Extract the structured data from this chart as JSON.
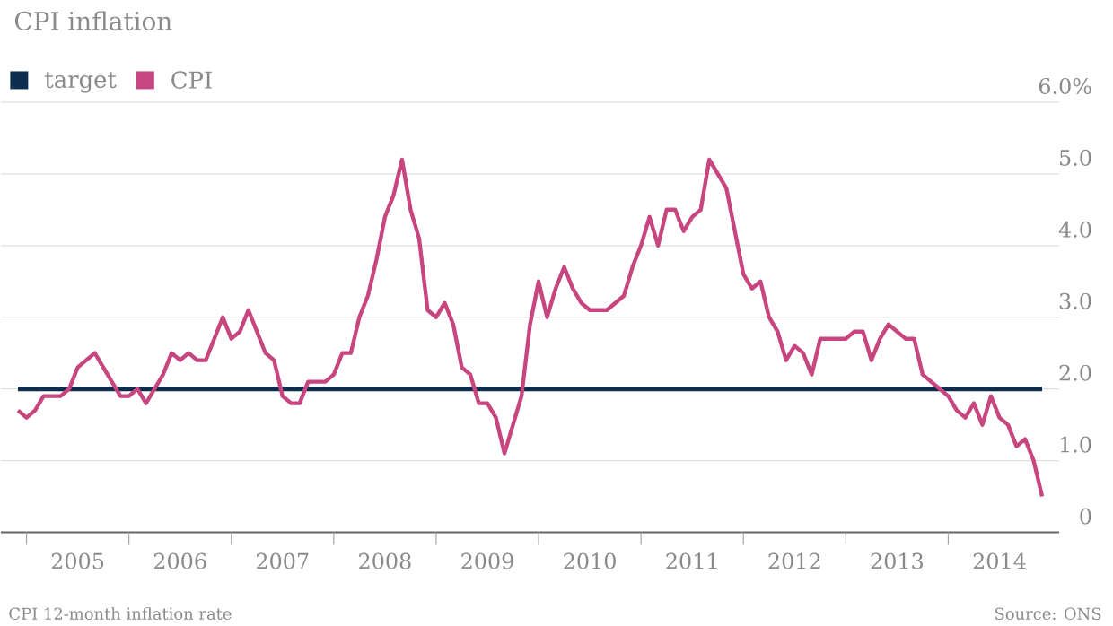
{
  "chart_data": {
    "type": "line",
    "title": "CPI inflation",
    "x": [
      "2004-12",
      "2005-01",
      "2005-02",
      "2005-03",
      "2005-04",
      "2005-05",
      "2005-06",
      "2005-07",
      "2005-08",
      "2005-09",
      "2005-10",
      "2005-11",
      "2005-12",
      "2006-01",
      "2006-02",
      "2006-03",
      "2006-04",
      "2006-05",
      "2006-06",
      "2006-07",
      "2006-08",
      "2006-09",
      "2006-10",
      "2006-11",
      "2006-12",
      "2007-01",
      "2007-02",
      "2007-03",
      "2007-04",
      "2007-05",
      "2007-06",
      "2007-07",
      "2007-08",
      "2007-09",
      "2007-10",
      "2007-11",
      "2007-12",
      "2008-01",
      "2008-02",
      "2008-03",
      "2008-04",
      "2008-05",
      "2008-06",
      "2008-07",
      "2008-08",
      "2008-09",
      "2008-10",
      "2008-11",
      "2008-12",
      "2009-01",
      "2009-02",
      "2009-03",
      "2009-04",
      "2009-05",
      "2009-06",
      "2009-07",
      "2009-08",
      "2009-09",
      "2009-10",
      "2009-11",
      "2009-12",
      "2010-01",
      "2010-02",
      "2010-03",
      "2010-04",
      "2010-05",
      "2010-06",
      "2010-07",
      "2010-08",
      "2010-09",
      "2010-10",
      "2010-11",
      "2010-12",
      "2011-01",
      "2011-02",
      "2011-03",
      "2011-04",
      "2011-05",
      "2011-06",
      "2011-07",
      "2011-08",
      "2011-09",
      "2011-10",
      "2011-11",
      "2011-12",
      "2012-01",
      "2012-02",
      "2012-03",
      "2012-04",
      "2012-05",
      "2012-06",
      "2012-07",
      "2012-08",
      "2012-09",
      "2012-10",
      "2012-11",
      "2012-12",
      "2013-01",
      "2013-02",
      "2013-03",
      "2013-04",
      "2013-05",
      "2013-06",
      "2013-07",
      "2013-08",
      "2013-09",
      "2013-10",
      "2013-11",
      "2013-12",
      "2014-01",
      "2014-02",
      "2014-03",
      "2014-04",
      "2014-05",
      "2014-06",
      "2014-07",
      "2014-08",
      "2014-09",
      "2014-10",
      "2014-11",
      "2014-12"
    ],
    "series": [
      {
        "name": "target",
        "color": "#0d2c4e",
        "x": [
          "2004-12",
          "2014-12"
        ],
        "values": [
          2.0,
          2.0
        ]
      },
      {
        "name": "CPI",
        "color": "#c8467f",
        "values": [
          1.7,
          1.6,
          1.7,
          1.9,
          1.9,
          1.9,
          2.0,
          2.3,
          2.4,
          2.5,
          2.3,
          2.1,
          1.9,
          1.9,
          2.0,
          1.8,
          2.0,
          2.2,
          2.5,
          2.4,
          2.5,
          2.4,
          2.4,
          2.7,
          3.0,
          2.7,
          2.8,
          3.1,
          2.8,
          2.5,
          2.4,
          1.9,
          1.8,
          1.8,
          2.1,
          2.1,
          2.1,
          2.2,
          2.5,
          2.5,
          3.0,
          3.3,
          3.8,
          4.4,
          4.7,
          5.2,
          4.5,
          4.1,
          3.1,
          3.0,
          3.2,
          2.9,
          2.3,
          2.2,
          1.8,
          1.8,
          1.6,
          1.1,
          1.5,
          1.9,
          2.9,
          3.5,
          3.0,
          3.4,
          3.7,
          3.4,
          3.2,
          3.1,
          3.1,
          3.1,
          3.2,
          3.3,
          3.7,
          4.0,
          4.4,
          4.0,
          4.5,
          4.5,
          4.2,
          4.4,
          4.5,
          5.2,
          5.0,
          4.8,
          4.2,
          3.6,
          3.4,
          3.5,
          3.0,
          2.8,
          2.4,
          2.6,
          2.5,
          2.2,
          2.7,
          2.7,
          2.7,
          2.7,
          2.8,
          2.8,
          2.4,
          2.7,
          2.9,
          2.8,
          2.7,
          2.7,
          2.2,
          2.1,
          2.0,
          1.9,
          1.7,
          1.6,
          1.8,
          1.5,
          1.9,
          1.6,
          1.5,
          1.2,
          1.3,
          1.0,
          0.5
        ]
      }
    ],
    "xlim": [
      "2004-10",
      "2015-02"
    ],
    "xticks": [
      {
        "value": "2005-01",
        "label": null
      },
      {
        "value": "2005-07",
        "label": "2005"
      },
      {
        "value": "2006-01",
        "label": null
      },
      {
        "value": "2006-07",
        "label": "2006"
      },
      {
        "value": "2007-01",
        "label": null
      },
      {
        "value": "2007-07",
        "label": "2007"
      },
      {
        "value": "2008-01",
        "label": null
      },
      {
        "value": "2008-07",
        "label": "2008"
      },
      {
        "value": "2009-01",
        "label": null
      },
      {
        "value": "2009-07",
        "label": "2009"
      },
      {
        "value": "2010-01",
        "label": null
      },
      {
        "value": "2010-07",
        "label": "2010"
      },
      {
        "value": "2011-01",
        "label": null
      },
      {
        "value": "2011-07",
        "label": "2011"
      },
      {
        "value": "2012-01",
        "label": null
      },
      {
        "value": "2012-07",
        "label": "2012"
      },
      {
        "value": "2013-01",
        "label": null
      },
      {
        "value": "2013-07",
        "label": "2013"
      },
      {
        "value": "2014-01",
        "label": null
      },
      {
        "value": "2014-07",
        "label": "2014"
      }
    ],
    "ylim": [
      0,
      6
    ],
    "yticks": [
      0,
      {
        "value": 1,
        "label": "1.0"
      },
      {
        "value": 2,
        "label": "2.0"
      },
      {
        "value": 3,
        "label": "3.0"
      },
      {
        "value": 4,
        "label": "4.0"
      },
      {
        "value": 5,
        "label": "5.0"
      },
      {
        "value": 6,
        "label": "6.0%"
      }
    ],
    "grid": "y",
    "legend": "top left",
    "marker": "none",
    "line_style": "solid",
    "annotations": [
      "CPI 12-month inflation rate",
      "Source: ONS"
    ]
  }
}
